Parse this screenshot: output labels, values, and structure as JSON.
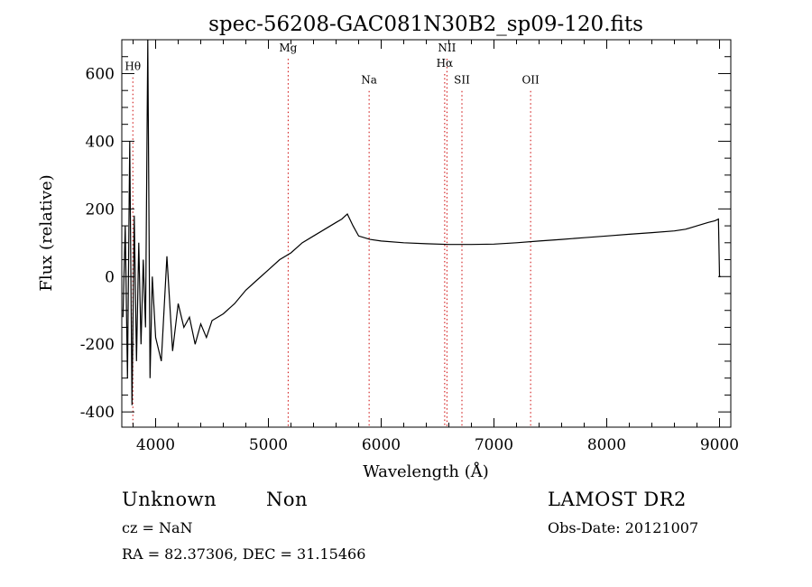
{
  "chart_data": {
    "type": "line",
    "title": "spec-56208-GAC081N30B2_sp09-120.fits",
    "xlabel": "Wavelength (Å)",
    "ylabel": "Flux (relative)",
    "xlim": [
      3700,
      9100
    ],
    "ylim": [
      -445,
      700
    ],
    "x_ticks": [
      4000,
      5000,
      6000,
      7000,
      8000,
      9000
    ],
    "y_ticks": [
      -400,
      -200,
      0,
      200,
      400,
      600
    ],
    "grid": false,
    "line_color": "#000000",
    "marker_color": "#cc0000",
    "series": [
      {
        "x": [
          3710,
          3730,
          3750,
          3770,
          3790,
          3810,
          3830,
          3850,
          3870,
          3890,
          3910,
          3930,
          3950,
          3970,
          4000,
          4050,
          4100,
          4150,
          4200,
          4250,
          4300,
          4350,
          4400,
          4450,
          4500,
          4600,
          4700,
          4800,
          4900,
          5000,
          5100,
          5200,
          5300,
          5400,
          5500,
          5600,
          5650,
          5700,
          5750,
          5800,
          5900,
          6000,
          6200,
          6400,
          6600,
          6800,
          7000,
          7200,
          7400,
          7600,
          7800,
          8000,
          8200,
          8400,
          8600,
          8700,
          8800,
          8900,
          8960,
          8990,
          9000,
          9010
        ],
        "y": [
          -120,
          150,
          -300,
          400,
          -380,
          180,
          -250,
          100,
          -200,
          50,
          -150,
          700,
          -300,
          0,
          -180,
          -250,
          60,
          -220,
          -80,
          -150,
          -120,
          -200,
          -140,
          -180,
          -130,
          -110,
          -80,
          -40,
          -10,
          20,
          50,
          70,
          100,
          120,
          140,
          160,
          170,
          185,
          150,
          120,
          110,
          105,
          100,
          97,
          95,
          95,
          96,
          100,
          105,
          110,
          115,
          120,
          125,
          130,
          135,
          140,
          150,
          160,
          165,
          170,
          0,
          0
        ]
      }
    ],
    "line_markers": [
      {
        "label": "Hθ",
        "x": 3798,
        "label_y": 610
      },
      {
        "label": "Mg",
        "x": 5175,
        "label_y": 665
      },
      {
        "label": "Na",
        "x": 5893,
        "label_y": 570
      },
      {
        "label": "NII",
        "x": 6583,
        "label_y": 665
      },
      {
        "label": "Hα",
        "x": 6563,
        "label_y": 620
      },
      {
        "label": "SII",
        "x": 6716,
        "label_y": 570
      },
      {
        "label": "OII",
        "x": 7325,
        "label_y": 570
      }
    ]
  },
  "footer": {
    "class_label": "Unknown",
    "subclass_label": "Non",
    "cz_label": "cz = NaN",
    "coords_label": "RA =  82.37306, DEC =  31.15466",
    "survey_label": "LAMOST DR2",
    "obs_date_label": "Obs-Date: 20121007"
  }
}
